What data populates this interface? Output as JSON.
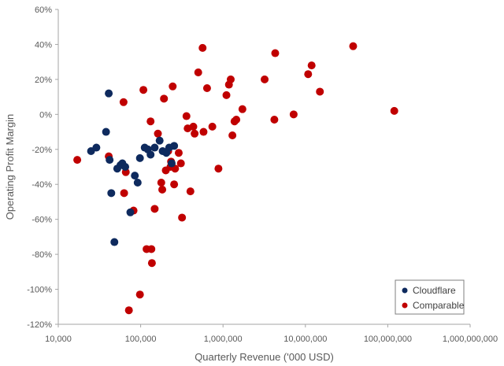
{
  "chart_data": {
    "type": "scatter",
    "title": "",
    "xlabel": "Quarterly Revenue ('000 USD)",
    "ylabel": "Operating Profit Margin",
    "x_scale": "log10",
    "xlim": [
      10000,
      1000000000
    ],
    "ylim": [
      -120,
      60
    ],
    "x_ticks": [
      {
        "value": 10000,
        "label": "10,000"
      },
      {
        "value": 100000,
        "label": "100,000"
      },
      {
        "value": 1000000,
        "label": "1,000,000"
      },
      {
        "value": 10000000,
        "label": "10,000,000"
      },
      {
        "value": 100000000,
        "label": "100,000,000"
      },
      {
        "value": 1000000000,
        "label": "1,000,000,000"
      }
    ],
    "y_ticks": [
      {
        "value": 60,
        "label": "60%"
      },
      {
        "value": 40,
        "label": "40%"
      },
      {
        "value": 20,
        "label": "20%"
      },
      {
        "value": 0,
        "label": "0%"
      },
      {
        "value": -20,
        "label": "-20%"
      },
      {
        "value": -40,
        "label": "-40%"
      },
      {
        "value": -60,
        "label": "-60%"
      },
      {
        "value": -80,
        "label": "-80%"
      },
      {
        "value": -100,
        "label": "-100%"
      },
      {
        "value": -120,
        "label": "-120%"
      }
    ],
    "grid": false,
    "legend_position": "bottom-right",
    "series": [
      {
        "name": "Cloudflare",
        "color": "#0e2a5e",
        "points": [
          [
            25000,
            -21
          ],
          [
            29000,
            -19
          ],
          [
            38000,
            -10
          ],
          [
            41000,
            12
          ],
          [
            42000,
            -26
          ],
          [
            44000,
            -45
          ],
          [
            48000,
            -73
          ],
          [
            52000,
            -31
          ],
          [
            57000,
            -29
          ],
          [
            60000,
            -28
          ],
          [
            65000,
            -30
          ],
          [
            75000,
            -56
          ],
          [
            85000,
            -35
          ],
          [
            92000,
            -39
          ],
          [
            98000,
            -25
          ],
          [
            112000,
            -19
          ],
          [
            122000,
            -20
          ],
          [
            132000,
            -23
          ],
          [
            148000,
            -19
          ],
          [
            170000,
            -15
          ],
          [
            185000,
            -21
          ],
          [
            205000,
            -22
          ],
          [
            222000,
            -19
          ],
          [
            238000,
            -28
          ],
          [
            255000,
            -18
          ]
        ]
      },
      {
        "name": "Comparable",
        "color": "#c00000",
        "points": [
          [
            17000,
            -26
          ],
          [
            41000,
            -24
          ],
          [
            62000,
            7
          ],
          [
            63000,
            -45
          ],
          [
            66000,
            -33
          ],
          [
            72000,
            -112
          ],
          [
            82000,
            -55
          ],
          [
            98000,
            -103
          ],
          [
            108000,
            14
          ],
          [
            118000,
            -77
          ],
          [
            132000,
            -4
          ],
          [
            135000,
            -77
          ],
          [
            137000,
            -85
          ],
          [
            148000,
            -54
          ],
          [
            162000,
            -11
          ],
          [
            178000,
            -39
          ],
          [
            183000,
            -43
          ],
          [
            192000,
            9
          ],
          [
            202000,
            -32
          ],
          [
            216000,
            -21
          ],
          [
            230000,
            -30
          ],
          [
            234000,
            -27
          ],
          [
            245000,
            16
          ],
          [
            255000,
            -40
          ],
          [
            262000,
            -31
          ],
          [
            290000,
            -22
          ],
          [
            308000,
            -28
          ],
          [
            318000,
            -59
          ],
          [
            360000,
            -1
          ],
          [
            372000,
            -8
          ],
          [
            402000,
            -44
          ],
          [
            436000,
            -7
          ],
          [
            452000,
            -11
          ],
          [
            500000,
            24
          ],
          [
            565000,
            38
          ],
          [
            580000,
            -10
          ],
          [
            640000,
            15
          ],
          [
            742000,
            -7
          ],
          [
            880000,
            -31
          ],
          [
            1100000,
            11
          ],
          [
            1180000,
            17
          ],
          [
            1240000,
            20
          ],
          [
            1300000,
            -12
          ],
          [
            1380000,
            -4
          ],
          [
            1450000,
            -3
          ],
          [
            1720000,
            3
          ],
          [
            3200000,
            20
          ],
          [
            4200000,
            -3
          ],
          [
            4300000,
            35
          ],
          [
            7200000,
            0
          ],
          [
            10800000,
            23
          ],
          [
            11900000,
            28
          ],
          [
            15000000,
            13
          ],
          [
            38000000,
            39
          ],
          [
            120000000,
            2
          ]
        ]
      }
    ]
  }
}
